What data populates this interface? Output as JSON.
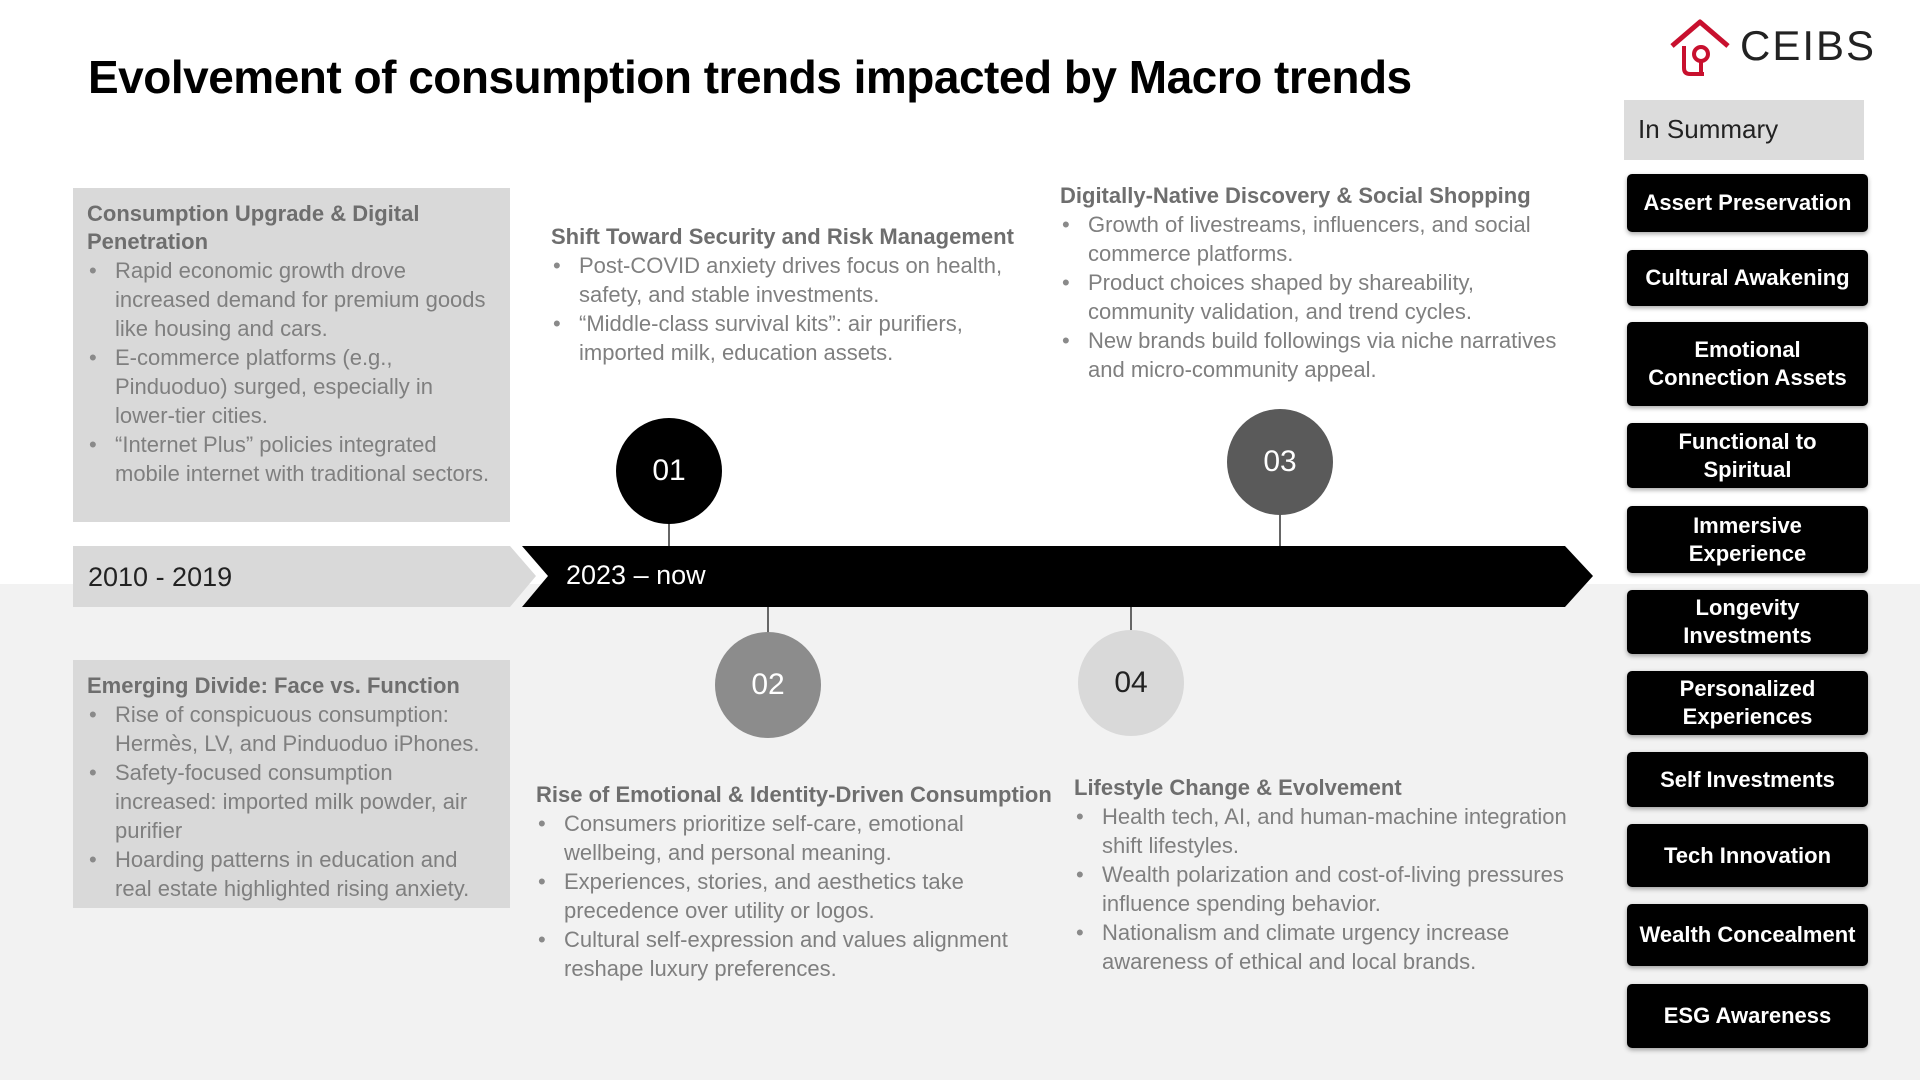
{
  "title": "Evolvement of consumption trends impacted by Macro trends",
  "logo": {
    "text": "CEIBS",
    "accent_color": "#c8102e"
  },
  "summary": {
    "header": "In Summary",
    "items": [
      "Assert Preservation",
      "Cultural Awakening",
      "Emotional Connection Assets",
      "Functional to Spiritual",
      "Immersive Experience",
      "Longevity Investments",
      "Personalized Experiences",
      "Self Investments",
      "Tech Innovation",
      "Wealth Concealment",
      "ESG Awareness"
    ]
  },
  "periods": {
    "left": "2010 - 2019",
    "right": "2023 – now"
  },
  "left_top": {
    "heading": "Consumption Upgrade & Digital Penetration",
    "bullets": [
      "Rapid economic growth drove increased demand for premium goods like housing and cars.",
      "E-commerce platforms (e.g., Pinduoduo) surged, especially in lower-tier cities.",
      "“Internet Plus” policies integrated mobile internet with traditional sectors."
    ]
  },
  "left_bottom": {
    "heading": "Emerging Divide: Face vs. Function",
    "bullets": [
      "Rise of conspicuous consumption: Hermès, LV, and Pinduoduo iPhones.",
      "Safety-focused consumption increased: imported milk powder, air purifier",
      "Hoarding patterns in education and real estate highlighted rising anxiety."
    ]
  },
  "milestones": [
    {
      "number": "01",
      "heading": "Shift Toward Security and Risk Management",
      "bullets": [
        "Post-COVID anxiety drives focus on health, safety, and stable investments.",
        "“Middle-class survival kits”: air purifiers, imported milk, education assets."
      ],
      "color": "#000000"
    },
    {
      "number": "02",
      "heading": "Rise of Emotional & Identity-Driven Consumption",
      "bullets": [
        "Consumers prioritize self-care, emotional wellbeing, and personal meaning.",
        "Experiences, stories, and aesthetics take precedence over utility or logos.",
        "Cultural self-expression and values alignment reshape luxury preferences."
      ],
      "color": "#8c8c8c"
    },
    {
      "number": "03",
      "heading": "Digitally-Native Discovery & Social Shopping",
      "bullets": [
        "Growth of livestreams, influencers, and social commerce platforms.",
        "Product choices shaped by shareability, community validation, and trend cycles.",
        "New brands build followings via niche narratives and micro-community appeal."
      ],
      "color": "#5a5a5a"
    },
    {
      "number": "04",
      "heading": "Lifestyle Change & Evolvement",
      "bullets": [
        "Health tech, AI, and human-machine integration shift lifestyles.",
        "Wealth polarization and cost-of-living pressures influence spending behavior.",
        "Nationalism and climate urgency increase awareness of ethical and local brands."
      ],
      "color": "#d9d9d9"
    }
  ]
}
